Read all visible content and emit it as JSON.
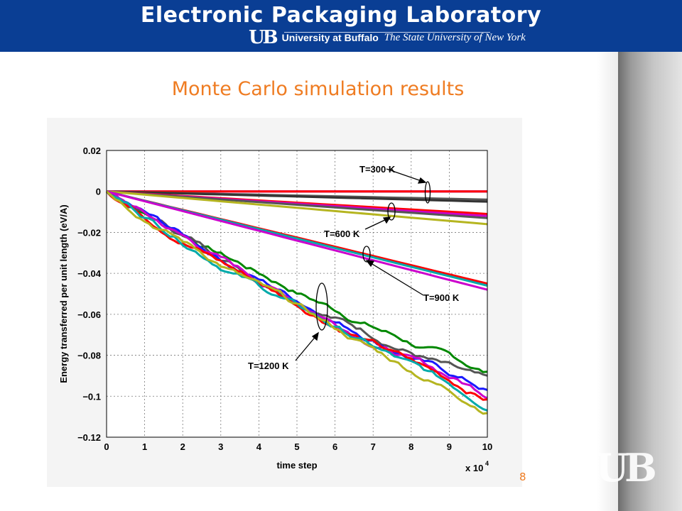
{
  "header": {
    "lab_name": "Electronic Packaging Laboratory",
    "ub_mark": "UB",
    "university": "University at Buffalo",
    "state_university": "The State University of New York"
  },
  "slide": {
    "title": "Monte Carlo simulation results",
    "page_number": "8"
  },
  "logo": {
    "text": "UB"
  },
  "colors": {
    "header_bg": "#0a3e94",
    "title_orange": "#ef7c22"
  },
  "chart_data": {
    "type": "line",
    "xlabel": "time step",
    "ylabel": "Energy transferred per unit length (eV/A)",
    "x_multiplier": "x 10",
    "x_exponent": "4",
    "xlim": [
      0,
      10
    ],
    "ylim": [
      -0.12,
      0.02
    ],
    "xticks": [
      "0",
      "1",
      "2",
      "3",
      "4",
      "5",
      "6",
      "7",
      "8",
      "9",
      "10"
    ],
    "yticks": [
      "0.02",
      "0",
      "−0.02",
      "−0.04",
      "−0.06",
      "−0.08",
      "−0.1",
      "−0.12"
    ],
    "grid": true,
    "annotations": [
      "T=300 K",
      "T=600 K",
      "T=900 K",
      "T=1200 K"
    ],
    "series": [
      {
        "group": "T=300 K",
        "color": "#1a1aff",
        "end": 0.0
      },
      {
        "group": "T=300 K",
        "color": "#cc00cc",
        "end": 0.0
      },
      {
        "group": "T=300 K",
        "color": "#ff0000",
        "end": 0.0
      },
      {
        "group": "T=300 K",
        "color": "#555555",
        "end": -0.004
      },
      {
        "group": "T=300 K",
        "color": "#333333",
        "end": -0.005
      },
      {
        "group": "T=600 K",
        "color": "#ff0000",
        "end": -0.011
      },
      {
        "group": "T=600 K",
        "color": "#cc00cc",
        "end": -0.012
      },
      {
        "group": "T=600 K",
        "color": "#555555",
        "end": -0.013
      },
      {
        "group": "T=600 K",
        "color": "#b5b520",
        "end": -0.016
      },
      {
        "group": "T=900 K",
        "color": "#ff0000",
        "end": -0.045
      },
      {
        "group": "T=900 K",
        "color": "#00aaaa",
        "end": -0.046
      },
      {
        "group": "T=900 K",
        "color": "#cc00cc",
        "end": -0.048
      },
      {
        "group": "T=1200 K",
        "color": "#008800",
        "end": -0.089
      },
      {
        "group": "T=1200 K",
        "color": "#555555",
        "end": -0.094
      },
      {
        "group": "T=1200 K",
        "color": "#1a1aff",
        "end": -0.097
      },
      {
        "group": "T=1200 K",
        "color": "#cc00cc",
        "end": -0.099
      },
      {
        "group": "T=1200 K",
        "color": "#ff0000",
        "end": -0.101
      },
      {
        "group": "T=1200 K",
        "color": "#00aaaa",
        "end": -0.104
      },
      {
        "group": "T=1200 K",
        "color": "#b5b520",
        "end": -0.106
      }
    ]
  }
}
